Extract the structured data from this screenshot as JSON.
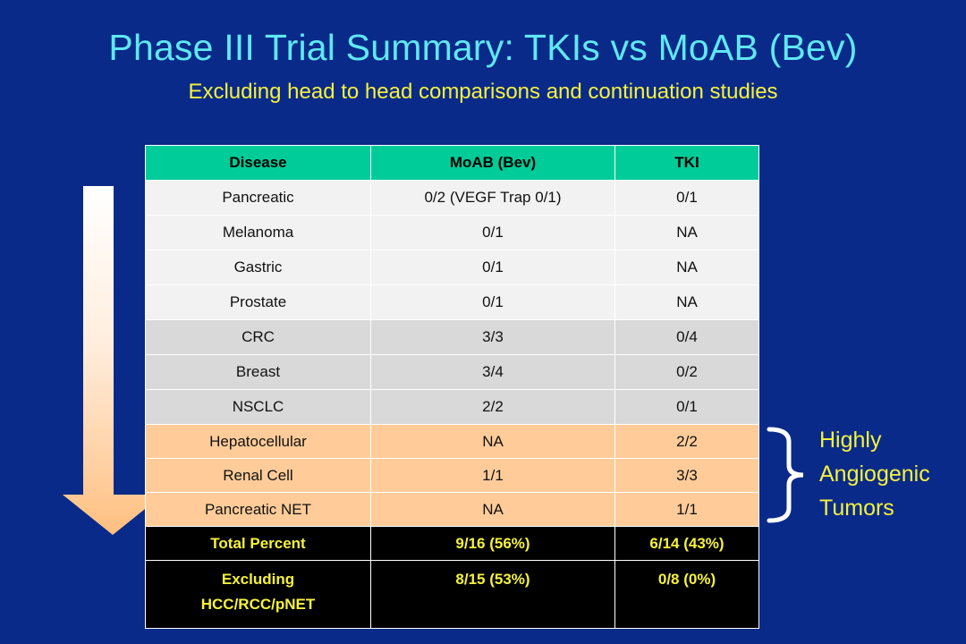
{
  "slide": {
    "title": "Phase III Trial Summary: TKIs vs MoAB (Bev)",
    "subtitle": "Excluding head to head comparisons and continuation studies"
  },
  "table": {
    "headers": [
      "Disease",
      "MoAB (Bev)",
      "TKI"
    ],
    "rows": [
      {
        "disease": "Pancreatic",
        "moab": "0/2 (VEGF Trap 0/1)",
        "tki": "0/1",
        "style": "light"
      },
      {
        "disease": "Melanoma",
        "moab": "0/1",
        "tki": "NA",
        "style": "light"
      },
      {
        "disease": "Gastric",
        "moab": "0/1",
        "tki": "NA",
        "style": "light"
      },
      {
        "disease": "Prostate",
        "moab": "0/1",
        "tki": "NA",
        "style": "light"
      },
      {
        "disease": "CRC",
        "moab": "3/3",
        "tki": "0/4",
        "style": "grey"
      },
      {
        "disease": "Breast",
        "moab": "3/4",
        "tki": "0/2",
        "style": "grey"
      },
      {
        "disease": "NSCLC",
        "moab": "2/2",
        "tki": "0/1",
        "style": "grey"
      },
      {
        "disease": "Hepatocellular",
        "moab": "NA",
        "tki": "2/2",
        "style": "peach"
      },
      {
        "disease": "Renal Cell",
        "moab": "1/1",
        "tki": "3/3",
        "style": "peach"
      },
      {
        "disease": "Pancreatic NET",
        "moab": "NA",
        "tki": "1/1",
        "style": "peach"
      }
    ],
    "total_row": {
      "label": "Total Percent",
      "moab": "9/16 (56%)",
      "tki": "6/14 (43%)"
    },
    "excluding_row": {
      "label_line1": "Excluding",
      "label_line2": "HCC/RCC/pNET",
      "moab": "8/15 (53%)",
      "tki": "0/8 (0%)"
    }
  },
  "annotation": {
    "line1": "Highly",
    "line2": "Angiogenic",
    "line3": "Tumors"
  },
  "colors": {
    "background": "#0a2a8a",
    "title": "#5fe8f0",
    "subtitle": "#f5f23c",
    "header": "#00cc99",
    "light_row": "#f2f2f2",
    "grey_row": "#d9d9d9",
    "peach_row": "#ffcc99",
    "total_row": "#000000"
  }
}
